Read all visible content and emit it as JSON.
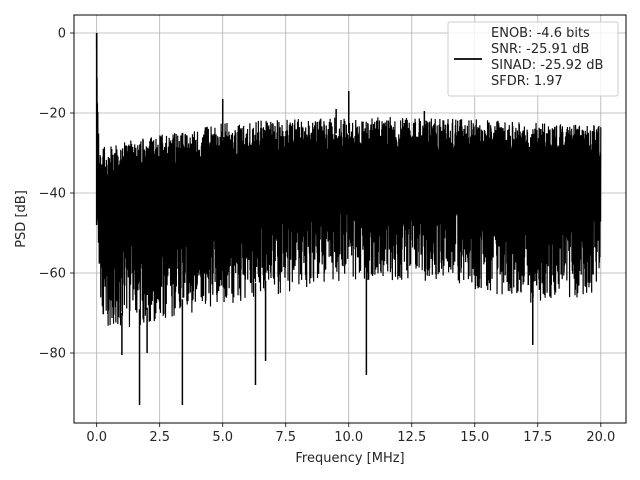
{
  "chart_data": {
    "type": "line",
    "title": "",
    "xlabel": "Frequency [MHz]",
    "ylabel": "PSD [dB]",
    "xlim": [
      -0.9,
      21.0
    ],
    "ylim": [
      -97.5,
      4.5
    ],
    "xticks": [
      0.0,
      2.5,
      5.0,
      7.5,
      10.0,
      12.5,
      15.0,
      17.5,
      20.0
    ],
    "xtick_labels": [
      "0.0",
      "2.5",
      "5.0",
      "7.5",
      "10.0",
      "12.5",
      "15.0",
      "17.5",
      "20.0"
    ],
    "yticks": [
      0,
      -20,
      -40,
      -60,
      -80
    ],
    "ytick_labels": [
      "0",
      "−20",
      "−40",
      "−60",
      "−80"
    ],
    "grid": true,
    "legend_position": "top-right",
    "line_color": "#000000",
    "series": [
      {
        "name": "",
        "upper_envelope": [
          [
            0.0,
            0.0
          ],
          [
            0.05,
            -19.0
          ],
          [
            0.1,
            -28.0
          ],
          [
            0.5,
            -27.5
          ],
          [
            1.0,
            -27.0
          ],
          [
            2.0,
            -26.0
          ],
          [
            3.0,
            -25.0
          ],
          [
            4.0,
            -24.0
          ],
          [
            5.0,
            -22.5
          ],
          [
            6.0,
            -22.0
          ],
          [
            7.5,
            -21.5
          ],
          [
            10.0,
            -21.0
          ],
          [
            12.5,
            -21.0
          ],
          [
            15.0,
            -21.5
          ],
          [
            17.5,
            -22.5
          ],
          [
            20.0,
            -23.0
          ]
        ],
        "lower_envelope": [
          [
            0.0,
            -48.0
          ],
          [
            0.2,
            -73.0
          ],
          [
            1.0,
            -74.0
          ],
          [
            2.5,
            -72.0
          ],
          [
            5.0,
            -68.0
          ],
          [
            7.5,
            -65.0
          ],
          [
            10.0,
            -62.0
          ],
          [
            12.5,
            -62.0
          ],
          [
            15.0,
            -64.0
          ],
          [
            17.5,
            -68.0
          ],
          [
            20.0,
            -65.0
          ]
        ],
        "peaks": [
          [
            0.0,
            0.0
          ],
          [
            5.0,
            -16.5
          ],
          [
            10.0,
            -14.5
          ],
          [
            9.5,
            -19.0
          ],
          [
            13.0,
            -19.5
          ]
        ],
        "dips": [
          [
            1.0,
            -80.5
          ],
          [
            1.7,
            -93.0
          ],
          [
            2.0,
            -80.0
          ],
          [
            3.4,
            -93.0
          ],
          [
            6.3,
            -88.0
          ],
          [
            6.7,
            -82.0
          ],
          [
            10.7,
            -85.5
          ],
          [
            17.3,
            -78.0
          ]
        ]
      }
    ],
    "legend": {
      "lines": [
        "ENOB: -4.6 bits",
        "SNR: -25.91 dB",
        "SINAD: -25.92 dB",
        "SFDR: 1.97"
      ]
    }
  }
}
